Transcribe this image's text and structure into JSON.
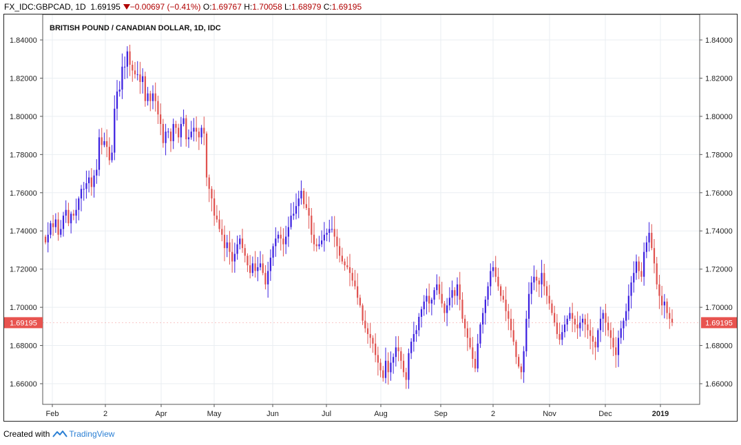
{
  "header": {
    "symbol": "FX_IDC:GBPCAD, 1D",
    "last": "1.69195",
    "change": "−0.00697 (−0.41%)",
    "open_label": "O:",
    "open": "1.69767",
    "high_label": "H:",
    "high": "1.70058",
    "low_label": "L:",
    "low": "1.68979",
    "close_label": "C:",
    "close": "1.69195"
  },
  "footer": {
    "created_with": "Created with",
    "brand": "TradingView"
  },
  "colors": {
    "up": "#3b1fe0",
    "down": "#e0524f",
    "grid": "#e9eef2",
    "price_tag": "#e8534f"
  },
  "chart_data": {
    "type": "candlestick",
    "title": "BRITISH POUND / CANADIAN DOLLAR, 1D, IDC",
    "y_ticks": [
      "1.84000",
      "1.82000",
      "1.80000",
      "1.78000",
      "1.76000",
      "1.74000",
      "1.72000",
      "1.70000",
      "1.68000",
      "1.66000"
    ],
    "ylim": [
      1.65,
      1.85
    ],
    "x_ticks": [
      "Feb",
      "2",
      "Apr",
      "May",
      "Jun",
      "Jul",
      "Aug",
      "Sep",
      "2",
      "Nov",
      "Dec",
      "2019"
    ],
    "last_price_label": "1.69195",
    "grid": true,
    "closes": [
      1.734,
      1.738,
      1.744,
      1.742,
      1.746,
      1.738,
      1.741,
      1.748,
      1.751,
      1.744,
      1.749,
      1.748,
      1.751,
      1.757,
      1.762,
      1.762,
      1.765,
      1.768,
      1.763,
      1.769,
      1.772,
      1.789,
      1.785,
      1.787,
      1.784,
      1.777,
      1.781,
      1.804,
      1.813,
      1.814,
      1.826,
      1.826,
      1.834,
      1.827,
      1.824,
      1.822,
      1.822,
      1.818,
      1.821,
      1.808,
      1.812,
      1.808,
      1.812,
      1.808,
      1.801,
      1.796,
      1.786,
      1.792,
      1.792,
      1.787,
      1.796,
      1.794,
      1.789,
      1.796,
      1.799,
      1.788,
      1.789,
      1.792,
      1.794,
      1.792,
      1.789,
      1.794,
      1.791,
      1.768,
      1.762,
      1.757,
      1.748,
      1.746,
      1.741,
      1.738,
      1.731,
      1.734,
      1.729,
      1.724,
      1.728,
      1.733,
      1.736,
      1.731,
      1.727,
      1.722,
      1.718,
      1.723,
      1.719,
      1.721,
      1.723,
      1.718,
      1.712,
      1.719,
      1.726,
      1.732,
      1.736,
      1.738,
      1.736,
      1.733,
      1.737,
      1.742,
      1.748,
      1.749,
      1.753,
      1.757,
      1.761,
      1.754,
      1.752,
      1.748,
      1.738,
      1.733,
      1.732,
      1.733,
      1.735,
      1.738,
      1.739,
      1.741,
      1.741,
      1.737,
      1.732,
      1.727,
      1.724,
      1.722,
      1.721,
      1.718,
      1.714,
      1.711,
      1.705,
      1.701,
      1.693,
      1.689,
      1.686,
      1.684,
      1.681,
      1.675,
      1.671,
      1.667,
      1.663,
      1.672,
      1.666,
      1.671,
      1.674,
      1.679,
      1.677,
      1.672,
      1.666,
      1.662,
      1.676,
      1.682,
      1.686,
      1.688,
      1.695,
      1.699,
      1.703,
      1.706,
      1.702,
      1.704,
      1.709,
      1.712,
      1.707,
      1.702,
      1.697,
      1.701,
      1.705,
      1.709,
      1.706,
      1.712,
      1.704,
      1.694,
      1.689,
      1.684,
      1.679,
      1.673,
      1.668,
      1.681,
      1.691,
      1.697,
      1.704,
      1.711,
      1.719,
      1.721,
      1.716,
      1.711,
      1.706,
      1.704,
      1.698,
      1.694,
      1.688,
      1.682,
      1.674,
      1.669,
      1.666,
      1.677,
      1.694,
      1.707,
      1.713,
      1.716,
      1.714,
      1.712,
      1.718,
      1.711,
      1.706,
      1.702,
      1.697,
      1.692,
      1.686,
      1.683,
      1.687,
      1.691,
      1.694,
      1.697,
      1.694,
      1.691,
      1.689,
      1.692,
      1.694,
      1.691,
      1.688,
      1.685,
      1.682,
      1.679,
      1.688,
      1.694,
      1.697,
      1.692,
      1.688,
      1.684,
      1.679,
      1.675,
      1.684,
      1.689,
      1.693,
      1.698,
      1.706,
      1.713,
      1.718,
      1.724,
      1.719,
      1.716,
      1.729,
      1.734,
      1.739,
      1.731,
      1.723,
      1.712,
      1.706,
      1.701,
      1.703,
      1.697,
      1.694,
      1.692
    ]
  }
}
